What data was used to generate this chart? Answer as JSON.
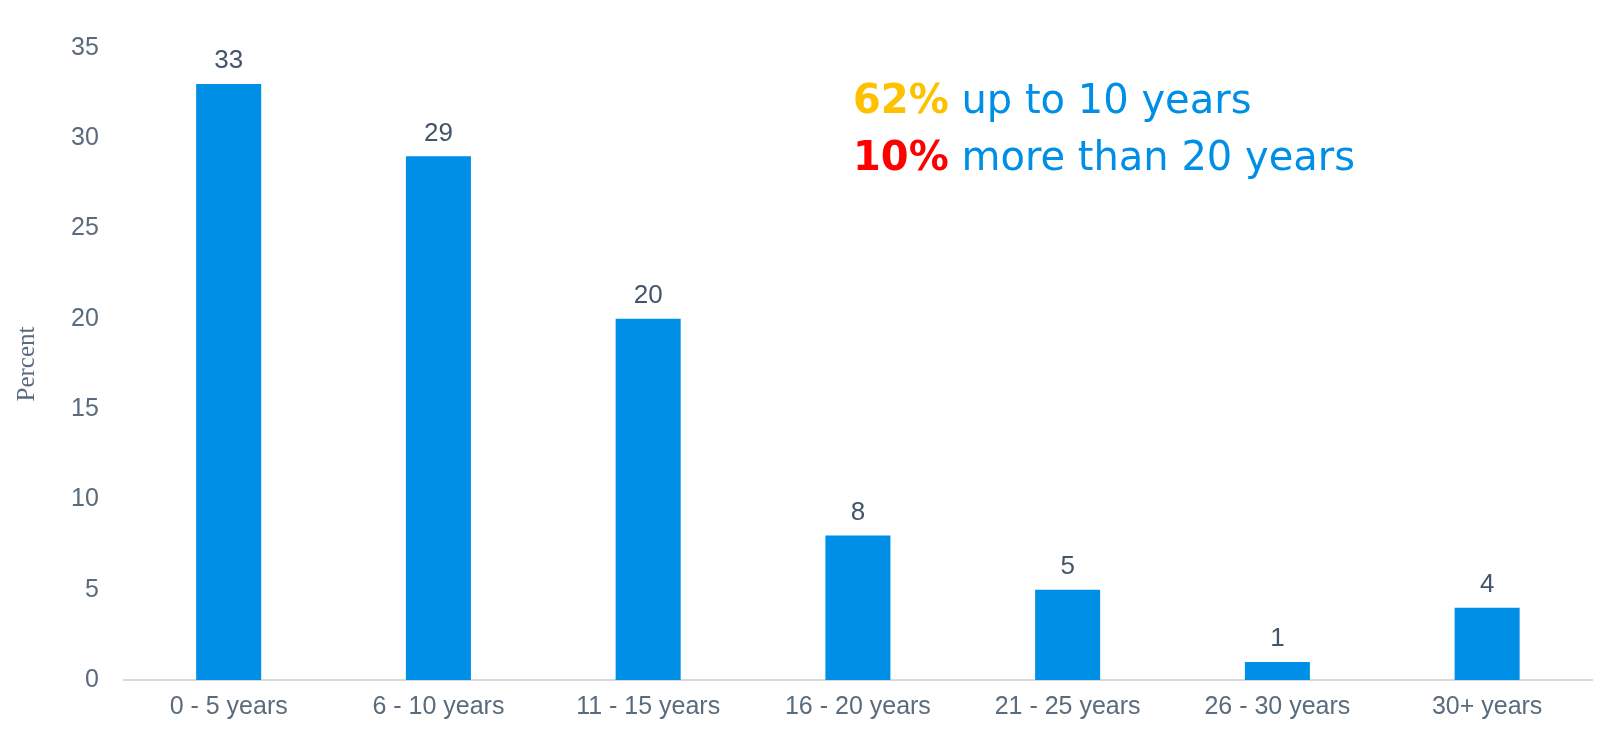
{
  "chart_data": {
    "type": "bar",
    "ylabel": "Percent",
    "categories": [
      "0 - 5 years",
      "6 - 10 years",
      "11 - 15 years",
      "16 - 20 years",
      "21 - 25 years",
      "26 - 30 years",
      "30+ years"
    ],
    "values": [
      33,
      29,
      20,
      8,
      5,
      1,
      4
    ],
    "color": "#008fe6",
    "ylim": [
      0,
      35
    ],
    "yticks": [
      0,
      5,
      10,
      15,
      20,
      25,
      30,
      35
    ],
    "grid": false,
    "data_labels": true,
    "legend": false,
    "annotations": [
      "62% up to 10 years",
      "10% more than 20 years"
    ]
  }
}
